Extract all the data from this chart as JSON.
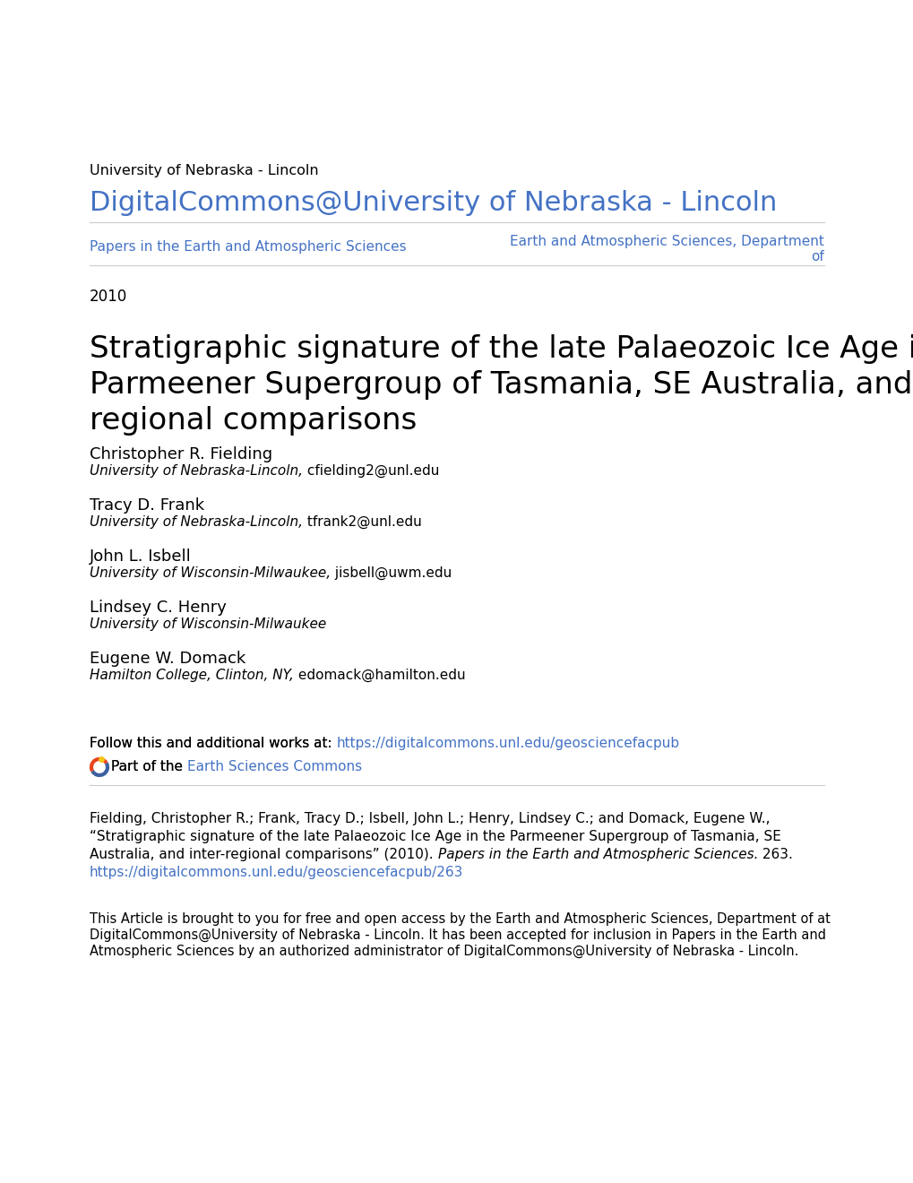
{
  "bg_color": "#ffffff",
  "unl_label": "University of Nebraska - Lincoln",
  "dc_title": "DigitalCommons@University of Nebraska - Lincoln",
  "dc_color": "#4472c4",
  "nav_left": "Papers in the Earth and Atmospheric Sciences",
  "nav_right_line1": "Earth and Atmospheric Sciences, Department",
  "nav_right_line2": "of",
  "nav_color": "#4472c4",
  "year": "2010",
  "paper_title_line1": "Stratigraphic signature of the late Palaeozoic Ice Age in the",
  "paper_title_line2": "Parmeener Supergroup of Tasmania, SE Australia, and inter-",
  "paper_title_line3": "regional comparisons",
  "authors": [
    {
      "name": "Christopher R. Fielding",
      "aff_italic": "University of Nebraska-Lincoln,",
      "aff_normal": " cfielding2@unl.edu"
    },
    {
      "name": "Tracy D. Frank",
      "aff_italic": "University of Nebraska-Lincoln,",
      "aff_normal": " tfrank2@unl.edu"
    },
    {
      "name": "John L. Isbell",
      "aff_italic": "University of Wisconsin-Milwaukee,",
      "aff_normal": " jisbell@uwm.edu"
    },
    {
      "name": "Lindsey C. Henry",
      "aff_italic": "University of Wisconsin-Milwaukee",
      "aff_normal": ""
    },
    {
      "name": "Eugene W. Domack",
      "aff_italic": "Hamilton College, Clinton, NY,",
      "aff_normal": " edomack@hamilton.edu"
    }
  ],
  "follow_prefix": "Follow this and additional works at: ",
  "follow_url": "https://digitalcommons.unl.edu/geosciencefacpub",
  "part_prefix": "Part of the ",
  "part_link": "Earth Sciences Commons",
  "cite_line1": "Fielding, Christopher R.; Frank, Tracy D.; Isbell, John L.; Henry, Lindsey C.; and Domack, Eugene W.,",
  "cite_line2": "“Stratigraphic signature of the late Palaeozoic Ice Age in the Parmeener Supergroup of Tasmania, SE",
  "cite_line3_normal": "Australia, and inter-regional comparisons” (2010). ",
  "cite_line3_italic": "Papers in the Earth and Atmospheric Sciences.",
  "cite_line3_end": " 263.",
  "cite_url": "https://digitalcommons.unl.edu/geosciencefacpub/263",
  "footer_line1": "This Article is brought to you for free and open access by the Earth and Atmospheric Sciences, Department of at",
  "footer_line2": "DigitalCommons@University of Nebraska - Lincoln. It has been accepted for inclusion in Papers in the Earth and",
  "footer_line3": "Atmospheric Sciences by an authorized administrator of DigitalCommons@University of Nebraska - Lincoln.",
  "link_color": "#4472c4",
  "text_color": "#000000",
  "sep_color": "#cccccc"
}
